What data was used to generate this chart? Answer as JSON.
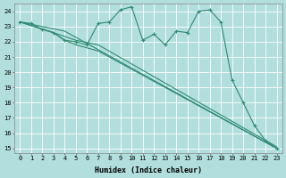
{
  "xlabel": "Humidex (Indice chaleur)",
  "bg_color": "#b2dede",
  "grid_color": "#ffffff",
  "line_color": "#2e8b74",
  "xlim": [
    -0.5,
    23.5
  ],
  "ylim": [
    14.7,
    24.5
  ],
  "yticks": [
    15,
    16,
    17,
    18,
    19,
    20,
    21,
    22,
    23,
    24
  ],
  "xticks": [
    0,
    1,
    2,
    3,
    4,
    5,
    6,
    7,
    8,
    9,
    10,
    11,
    12,
    13,
    14,
    15,
    16,
    17,
    18,
    19,
    20,
    21,
    22,
    23
  ],
  "lines": [
    {
      "x": [
        0,
        1,
        2,
        3,
        4,
        5,
        6,
        7,
        8,
        9,
        10,
        11,
        12,
        13,
        14,
        15,
        16,
        17,
        18,
        19,
        20,
        21,
        22,
        23
      ],
      "y": [
        23.3,
        23.2,
        22.8,
        22.6,
        22.1,
        22.0,
        21.8,
        23.2,
        23.3,
        24.1,
        24.3,
        22.1,
        22.5,
        21.8,
        22.7,
        22.6,
        24.0,
        24.1,
        23.3,
        19.5,
        18.0,
        16.5,
        15.5,
        15.0
      ],
      "has_markers": true
    },
    {
      "x": [
        0,
        4,
        23
      ],
      "y": [
        23.3,
        22.7,
        15.0
      ],
      "has_markers": false
    },
    {
      "x": [
        0,
        3,
        5,
        7,
        23
      ],
      "y": [
        23.3,
        22.6,
        22.1,
        21.8,
        15.1
      ],
      "has_markers": false
    },
    {
      "x": [
        0,
        3,
        4,
        5,
        6,
        7,
        23
      ],
      "y": [
        23.3,
        22.6,
        22.1,
        21.8,
        21.6,
        21.4,
        15.0
      ],
      "has_markers": false
    }
  ]
}
